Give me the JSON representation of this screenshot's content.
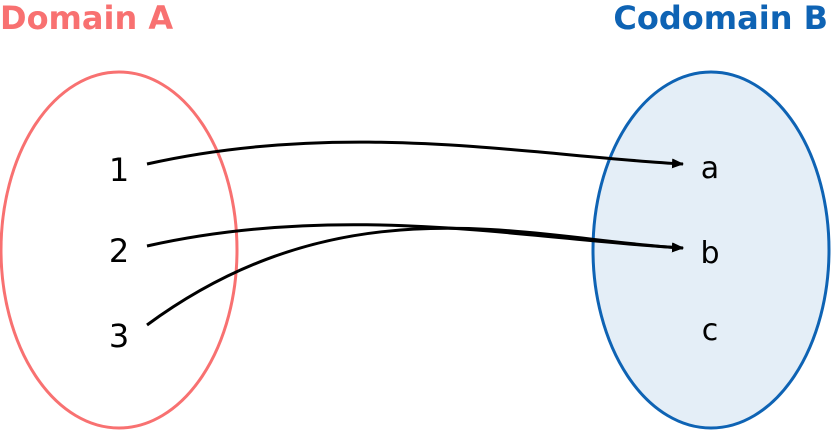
{
  "domain": {
    "title": "Domain A",
    "elements": [
      "1",
      "2",
      "3"
    ],
    "stroke_color": "#f87171",
    "fill_color": "#ffffff"
  },
  "codomain": {
    "title": "Codomain B",
    "elements": [
      "a",
      "b",
      "c"
    ],
    "stroke_color": "#0e63b4",
    "fill_color": "#e4eef7"
  },
  "arrow_color": "#000000",
  "mappings": [
    {
      "from": "1",
      "to": "a"
    },
    {
      "from": "2",
      "to": "b"
    },
    {
      "from": "3",
      "to": "b"
    }
  ]
}
